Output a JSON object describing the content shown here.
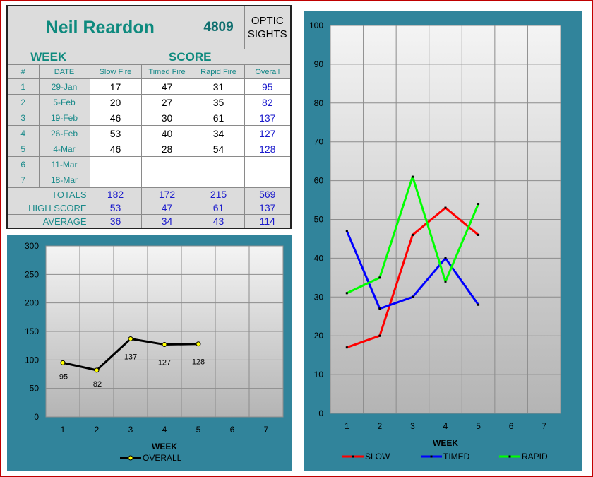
{
  "header": {
    "name": "Neil Reardon",
    "number": "4809",
    "class_line1": "OPTIC",
    "class_line2": "SIGHTS"
  },
  "sections": {
    "week": "WEEK",
    "score": "SCORE"
  },
  "columns": [
    "#",
    "DATE",
    "Slow Fire",
    "Timed Fire",
    "Rapid Fire",
    "Overall"
  ],
  "rows": [
    {
      "n": "1",
      "date": "29-Jan",
      "slow": "17",
      "timed": "47",
      "rapid": "31",
      "overall": "95"
    },
    {
      "n": "2",
      "date": "5-Feb",
      "slow": "20",
      "timed": "27",
      "rapid": "35",
      "overall": "82"
    },
    {
      "n": "3",
      "date": "19-Feb",
      "slow": "46",
      "timed": "30",
      "rapid": "61",
      "overall": "137"
    },
    {
      "n": "4",
      "date": "26-Feb",
      "slow": "53",
      "timed": "40",
      "rapid": "34",
      "overall": "127"
    },
    {
      "n": "5",
      "date": "4-Mar",
      "slow": "46",
      "timed": "28",
      "rapid": "54",
      "overall": "128"
    },
    {
      "n": "6",
      "date": "11-Mar",
      "slow": "",
      "timed": "",
      "rapid": "",
      "overall": ""
    },
    {
      "n": "7",
      "date": "18-Mar",
      "slow": "",
      "timed": "",
      "rapid": "",
      "overall": ""
    }
  ],
  "summary": [
    {
      "label": "TOTALS",
      "slow": "182",
      "timed": "172",
      "rapid": "215",
      "overall": "569"
    },
    {
      "label": "HIGH SCORE",
      "slow": "53",
      "timed": "47",
      "rapid": "61",
      "overall": "137"
    },
    {
      "label": "AVERAGE",
      "slow": "36",
      "timed": "34",
      "rapid": "43",
      "overall": "114"
    }
  ],
  "chart_data": [
    {
      "type": "line",
      "xlabel": "WEEK",
      "ylabel": "",
      "categories": [
        "1",
        "2",
        "3",
        "4",
        "5",
        "6",
        "7"
      ],
      "ylim": [
        0,
        300
      ],
      "yticks": [
        0,
        50,
        100,
        150,
        200,
        250,
        300
      ],
      "grid": true,
      "legend": "bottom",
      "data_labels": true,
      "series": [
        {
          "name": "OVERALL",
          "color": "#000000",
          "marker_color": "#ffff00",
          "values": [
            95,
            82,
            137,
            127,
            128,
            null,
            null
          ]
        }
      ]
    },
    {
      "type": "line",
      "xlabel": "WEEK",
      "ylabel": "",
      "categories": [
        "1",
        "2",
        "3",
        "4",
        "5",
        "6",
        "7"
      ],
      "ylim": [
        0,
        100
      ],
      "yticks": [
        0,
        10,
        20,
        30,
        40,
        50,
        60,
        70,
        80,
        90,
        100
      ],
      "grid": true,
      "legend": "bottom",
      "series": [
        {
          "name": "SLOW",
          "color": "#ff0000",
          "values": [
            17,
            20,
            46,
            53,
            46,
            null,
            null
          ]
        },
        {
          "name": "TIMED",
          "color": "#0000ff",
          "values": [
            47,
            27,
            30,
            40,
            28,
            null,
            null
          ]
        },
        {
          "name": "RAPID",
          "color": "#00ff00",
          "values": [
            31,
            35,
            61,
            34,
            54,
            null,
            null
          ]
        }
      ]
    }
  ]
}
